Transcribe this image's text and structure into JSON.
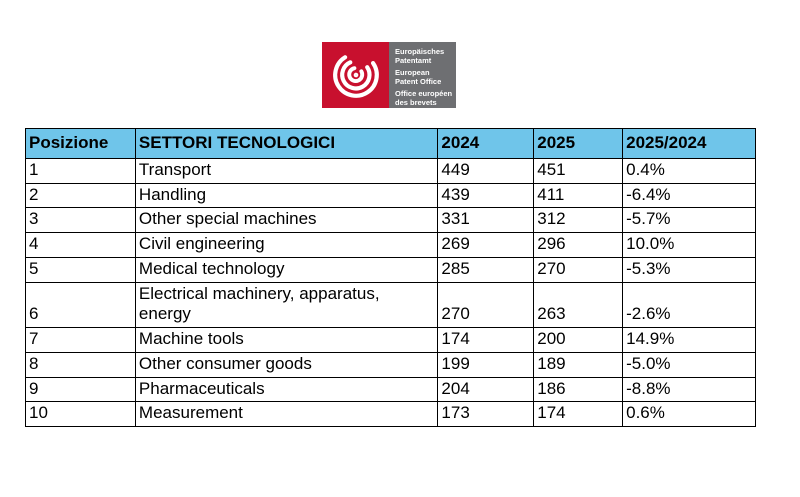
{
  "logo": {
    "lines": [
      "Europäisches",
      "Patentamt",
      "European",
      "Patent Office",
      "Office européen",
      "des brevets"
    ],
    "colors": {
      "red": "#C8102E",
      "gray": "#6E6F72"
    }
  },
  "table": {
    "header_bg": "#6FC5EA",
    "headers": [
      "Posizione",
      "SETTORI TECNOLOGICI",
      "2024",
      "2025",
      "2025/2024"
    ],
    "rows": [
      [
        "1",
        "Transport",
        "449",
        "451",
        "0.4%"
      ],
      [
        "2",
        "Handling",
        "439",
        "411",
        "-6.4%"
      ],
      [
        "3",
        "Other special machines",
        "331",
        "312",
        "-5.7%"
      ],
      [
        "4",
        "Civil engineering",
        "269",
        "296",
        "10.0%"
      ],
      [
        "5",
        "Medical technology",
        "285",
        "270",
        "-5.3%"
      ],
      [
        "6",
        "Electrical machinery, apparatus, energy",
        "270",
        "263",
        "-2.6%"
      ],
      [
        "7",
        "Machine tools",
        "174",
        "200",
        "14.9%"
      ],
      [
        "8",
        "Other consumer goods",
        "199",
        "189",
        "-5.0%"
      ],
      [
        "9",
        "Pharmaceuticals",
        "204",
        "186",
        "-8.8%"
      ],
      [
        "10",
        "Measurement",
        "173",
        "174",
        "0.6%"
      ]
    ]
  }
}
